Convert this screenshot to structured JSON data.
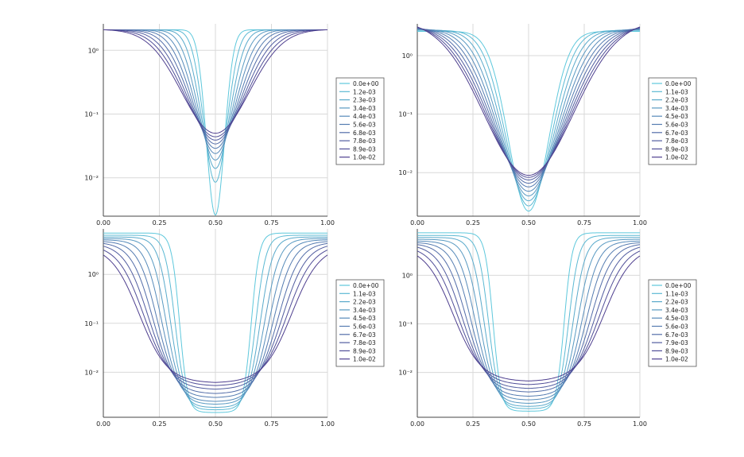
{
  "colors": {
    "background": "#ffffff",
    "grid": "#d9d9d9",
    "axis": "#444444",
    "legend_border": "#555555",
    "series_gradient": [
      "#5ec8dc",
      "#4e3f8f"
    ]
  },
  "chart_data": [
    {
      "type": "line",
      "title": "",
      "xlabel": "",
      "ylabel": "",
      "y_scale": "log",
      "xlim": [
        0,
        1
      ],
      "ylim": [
        0.0025,
        2.6
      ],
      "xticks": [
        0.0,
        0.25,
        0.5,
        0.75,
        1.0
      ],
      "xtick_labels": [
        "0.00",
        "0.25",
        "0.50",
        "0.75",
        "1.00"
      ],
      "yticks": [
        1,
        0.1,
        0.01
      ],
      "ytick_labels": [
        "10⁰",
        "10⁻¹",
        "10⁻²"
      ],
      "grid": true,
      "legend_position": "right",
      "series": [
        {
          "name": "0.0e+00",
          "min_value": 0.0026,
          "end_value": 2.1
        },
        {
          "name": "1.2e-03",
          "min_value": 0.0085,
          "end_value": 2.1
        },
        {
          "name": "2.3e-03",
          "min_value": 0.014,
          "end_value": 2.1
        },
        {
          "name": "3.4e-03",
          "min_value": 0.019,
          "end_value": 2.1
        },
        {
          "name": "4.4e-03",
          "min_value": 0.024,
          "end_value": 2.1
        },
        {
          "name": "5.6e-03",
          "min_value": 0.029,
          "end_value": 2.1
        },
        {
          "name": "6.8e-03",
          "min_value": 0.034,
          "end_value": 2.1
        },
        {
          "name": "7.8e-03",
          "min_value": 0.039,
          "end_value": 2.1
        },
        {
          "name": "8.9e-03",
          "min_value": 0.044,
          "end_value": 2.1
        },
        {
          "name": "1.0e-02",
          "min_value": 0.05,
          "end_value": 2.1
        }
      ]
    },
    {
      "type": "line",
      "title": "",
      "xlabel": "",
      "ylabel": "",
      "y_scale": "log",
      "xlim": [
        0,
        1
      ],
      "ylim": [
        0.0018,
        3.5
      ],
      "xticks": [
        0.0,
        0.25,
        0.5,
        0.75,
        1.0
      ],
      "xtick_labels": [
        "0.00",
        "0.25",
        "0.50",
        "0.75",
        "1.00"
      ],
      "yticks": [
        1,
        0.1,
        0.01
      ],
      "ytick_labels": [
        "10⁰",
        "10⁻¹",
        "10⁻²"
      ],
      "grid": true,
      "legend_position": "right",
      "series": [
        {
          "name": "0.0e+00",
          "min_value": 0.0022,
          "end_value": 2.6
        },
        {
          "name": "1.1e-03",
          "min_value": 0.0027,
          "end_value": 2.7
        },
        {
          "name": "2.2e-03",
          "min_value": 0.0033,
          "end_value": 2.75
        },
        {
          "name": "3.4e-03",
          "min_value": 0.004,
          "end_value": 2.8
        },
        {
          "name": "4.5e-03",
          "min_value": 0.0048,
          "end_value": 2.85
        },
        {
          "name": "5.6e-03",
          "min_value": 0.0057,
          "end_value": 2.9
        },
        {
          "name": "6.7e-03",
          "min_value": 0.0066,
          "end_value": 2.95
        },
        {
          "name": "7.8e-03",
          "min_value": 0.0075,
          "end_value": 3.0
        },
        {
          "name": "8.9e-03",
          "min_value": 0.0083,
          "end_value": 3.05
        },
        {
          "name": "1.0e-02",
          "min_value": 0.009,
          "end_value": 3.1
        }
      ]
    },
    {
      "type": "line",
      "title": "",
      "xlabel": "",
      "ylabel": "",
      "y_scale": "log",
      "xlim": [
        0,
        1
      ],
      "ylim": [
        0.0012,
        8.5
      ],
      "xticks": [
        0.0,
        0.25,
        0.5,
        0.75,
        1.0
      ],
      "xtick_labels": [
        "0.00",
        "0.25",
        "0.50",
        "0.75",
        "1.00"
      ],
      "yticks": [
        1,
        0.1,
        0.01
      ],
      "ytick_labels": [
        "10⁰",
        "10⁻¹",
        "10⁻²"
      ],
      "grid": true,
      "legend_position": "right",
      "series": [
        {
          "name": "0.0e+00",
          "min_value": 0.0015,
          "end_value": 7.0
        },
        {
          "name": "1.1e-03",
          "min_value": 0.0017,
          "end_value": 6.3
        },
        {
          "name": "2.2e-03",
          "min_value": 0.0019,
          "end_value": 5.8
        },
        {
          "name": "3.4e-03",
          "min_value": 0.0022,
          "end_value": 5.4
        },
        {
          "name": "4.5e-03",
          "min_value": 0.0025,
          "end_value": 5.1
        },
        {
          "name": "5.6e-03",
          "min_value": 0.003,
          "end_value": 4.8
        },
        {
          "name": "6.7e-03",
          "min_value": 0.0036,
          "end_value": 4.6
        },
        {
          "name": "7.8e-03",
          "min_value": 0.0044,
          "end_value": 4.4
        },
        {
          "name": "8.9e-03",
          "min_value": 0.0052,
          "end_value": 4.2
        },
        {
          "name": "1.0e-02",
          "min_value": 0.006,
          "end_value": 4.0
        }
      ]
    },
    {
      "type": "line",
      "title": "",
      "xlabel": "",
      "ylabel": "",
      "y_scale": "log",
      "xlim": [
        0,
        1
      ],
      "ylim": [
        0.0012,
        9.0
      ],
      "xticks": [
        0.0,
        0.25,
        0.5,
        0.75,
        1.0
      ],
      "xtick_labels": [
        "0.00",
        "0.25",
        "0.50",
        "0.75",
        "1.00"
      ],
      "yticks": [
        1,
        0.1,
        0.01
      ],
      "ytick_labels": [
        "10⁰",
        "10⁻¹",
        "10⁻²"
      ],
      "grid": true,
      "legend_position": "right",
      "series": [
        {
          "name": "0.0e+00",
          "min_value": 0.0016,
          "end_value": 7.5
        },
        {
          "name": "1.1e-03",
          "min_value": 0.0018,
          "end_value": 6.6
        },
        {
          "name": "2.2e-03",
          "min_value": 0.002,
          "end_value": 6.0
        },
        {
          "name": "3.4e-03",
          "min_value": 0.0023,
          "end_value": 5.5
        },
        {
          "name": "4.5e-03",
          "min_value": 0.0027,
          "end_value": 5.1
        },
        {
          "name": "5.6e-03",
          "min_value": 0.0032,
          "end_value": 4.8
        },
        {
          "name": "6.7e-03",
          "min_value": 0.0039,
          "end_value": 4.6
        },
        {
          "name": "7.9e-03",
          "min_value": 0.0046,
          "end_value": 4.4
        },
        {
          "name": "8.9e-03",
          "min_value": 0.0055,
          "end_value": 4.2
        },
        {
          "name": "1.0e-02",
          "min_value": 0.0065,
          "end_value": 4.0
        }
      ]
    }
  ]
}
